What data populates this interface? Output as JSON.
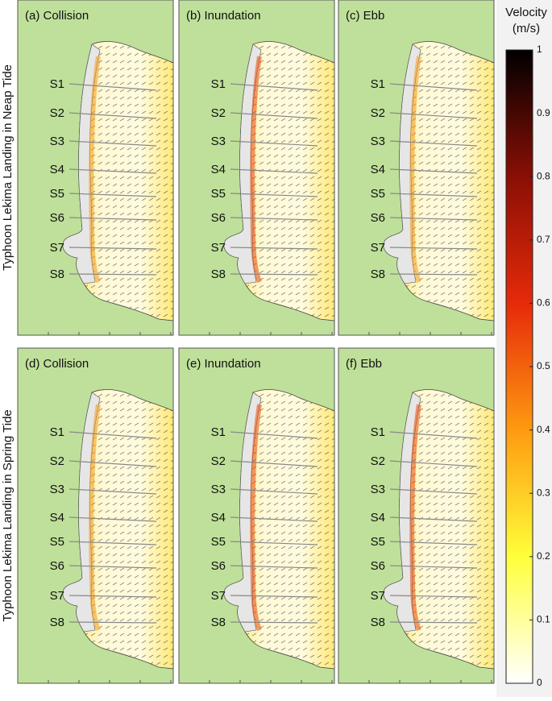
{
  "row_labels": [
    "Typhoon Lekima Landing in Neap Tide",
    "Typhoon Lekima Landing in Spring Tide"
  ],
  "panels": [
    {
      "title": "(a) Collision"
    },
    {
      "title": "(b) Inundation"
    },
    {
      "title": "(c) Ebb"
    },
    {
      "title": "(d) Collision"
    },
    {
      "title": "(e) Inundation"
    },
    {
      "title": "(f) Ebb"
    }
  ],
  "stations": [
    "S1",
    "S2",
    "S3",
    "S4",
    "S5",
    "S6",
    "S7",
    "S8"
  ],
  "colorbar": {
    "title": "Velocity",
    "unit": "(m/s)",
    "lim": [
      0,
      1
    ],
    "ticks": [
      0,
      0.1,
      0.2,
      0.3,
      0.4,
      0.5,
      0.6,
      0.7,
      0.8,
      0.9,
      1
    ]
  }
}
